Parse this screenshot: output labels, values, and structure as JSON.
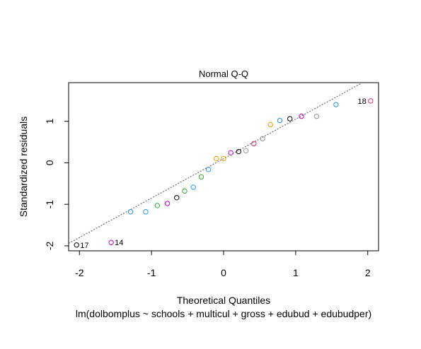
{
  "chart_data": {
    "type": "scatter",
    "title": "Normal Q-Q",
    "xlabel": "Theoretical Quantiles",
    "ylabel": "Standardized residuals",
    "caption": "lm(dolbomplus ~ schools + multicul + gross + edubud + edubudper)",
    "xlim": [
      -2.15,
      2.15
    ],
    "ylim": [
      -2.12,
      1.93
    ],
    "xticks": [
      -2,
      -1,
      0,
      1,
      2
    ],
    "xtick_labels": [
      "-2",
      "-1",
      "0",
      "1",
      "2"
    ],
    "yticks": [
      -2,
      -1,
      0,
      1
    ],
    "ytick_labels": [
      "-2",
      "-1",
      "0",
      "1"
    ],
    "grid": false,
    "reference_line": {
      "intercept": 0.1,
      "slope": 0.95
    },
    "points": [
      {
        "x": -2.04,
        "y": -1.98,
        "color": "#000000"
      },
      {
        "x": -1.56,
        "y": -1.92,
        "color": "#cc00cc"
      },
      {
        "x": -1.29,
        "y": -1.18,
        "color": "#2196f3"
      },
      {
        "x": -1.08,
        "y": -1.18,
        "color": "#2196f3"
      },
      {
        "x": -0.92,
        "y": -1.03,
        "color": "#33aa33"
      },
      {
        "x": -0.78,
        "y": -0.98,
        "color": "#cc00cc"
      },
      {
        "x": -0.65,
        "y": -0.84,
        "color": "#000000"
      },
      {
        "x": -0.54,
        "y": -0.68,
        "color": "#33aa33"
      },
      {
        "x": -0.42,
        "y": -0.59,
        "color": "#2196f3"
      },
      {
        "x": -0.31,
        "y": -0.34,
        "color": "#33aa33"
      },
      {
        "x": -0.21,
        "y": -0.16,
        "color": "#2196f3"
      },
      {
        "x": -0.1,
        "y": 0.1,
        "color": "#e69f00"
      },
      {
        "x": 0.0,
        "y": 0.1,
        "color": "#e69f00"
      },
      {
        "x": 0.1,
        "y": 0.24,
        "color": "#cc00cc"
      },
      {
        "x": 0.21,
        "y": 0.27,
        "color": "#000000"
      },
      {
        "x": 0.31,
        "y": 0.29,
        "color": "#999999"
      },
      {
        "x": 0.42,
        "y": 0.46,
        "color": "#e0307a"
      },
      {
        "x": 0.54,
        "y": 0.58,
        "color": "#999999"
      },
      {
        "x": 0.65,
        "y": 0.92,
        "color": "#e69f00"
      },
      {
        "x": 0.78,
        "y": 1.02,
        "color": "#2196f3"
      },
      {
        "x": 0.92,
        "y": 1.06,
        "color": "#000000"
      },
      {
        "x": 1.08,
        "y": 1.12,
        "color": "#cc00cc"
      },
      {
        "x": 1.29,
        "y": 1.12,
        "color": "#999999"
      },
      {
        "x": 1.56,
        "y": 1.4,
        "color": "#2196f3"
      },
      {
        "x": 2.04,
        "y": 1.49,
        "color": "#e0307a"
      }
    ],
    "point_labels": [
      {
        "text": "17",
        "x": -2.04,
        "y": -1.98,
        "side": "right"
      },
      {
        "text": "14",
        "x": -1.56,
        "y": -1.92,
        "side": "right"
      },
      {
        "text": "18",
        "x": 2.04,
        "y": 1.49,
        "side": "left"
      }
    ]
  }
}
